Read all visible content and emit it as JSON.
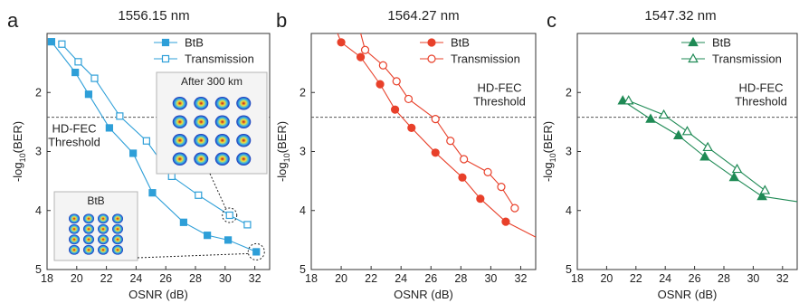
{
  "chart_data": [
    {
      "type": "line",
      "panel_letter": "a",
      "title": "1556.15 nm",
      "xlabel": "OSNR (dB)",
      "ylabel_main": "-log",
      "ylabel_sub": "10",
      "ylabel_tail": "(BER)",
      "xlim": [
        18,
        33
      ],
      "ylim": [
        5,
        1
      ],
      "y_inverted": true,
      "xticks": [
        18,
        20,
        22,
        24,
        26,
        28,
        30,
        32
      ],
      "yticks": [
        2,
        3,
        4,
        5
      ],
      "color": "#2e9fd8",
      "fec_threshold": 2.42,
      "fec_label_lines": [
        "HD-FEC",
        "Threshold"
      ],
      "legend_position": "top-right",
      "series": [
        {
          "name": "BtB",
          "marker": "square-filled",
          "x": [
            18.3,
            19.9,
            20.8,
            22.2,
            23.8,
            25.1,
            27.2,
            28.8,
            30.2,
            32.1
          ],
          "y": [
            1.14,
            1.66,
            2.03,
            2.6,
            3.03,
            3.7,
            4.2,
            4.42,
            4.5,
            4.7
          ]
        },
        {
          "name": "Transmission",
          "marker": "square-open",
          "x": [
            19.0,
            20.1,
            21.2,
            22.9,
            24.7,
            26.4,
            28.2,
            30.3,
            31.5
          ],
          "y": [
            1.18,
            1.48,
            1.76,
            2.4,
            2.82,
            3.42,
            3.74,
            4.08,
            4.24
          ]
        }
      ],
      "insets": [
        {
          "title": "After 300 km",
          "grid": "4x4",
          "x_pointer": 30.3,
          "y_pointer": 4.08
        },
        {
          "title": "BtB",
          "grid": "4x4",
          "x_pointer": 32.1,
          "y_pointer": 4.7
        }
      ]
    },
    {
      "type": "line",
      "panel_letter": "b",
      "title": "1564.27 nm",
      "xlabel": "OSNR (dB)",
      "ylabel_main": "-log",
      "ylabel_sub": "10",
      "ylabel_tail": "(BER)",
      "xlim": [
        18,
        33
      ],
      "ylim": [
        5,
        1
      ],
      "y_inverted": true,
      "xticks": [
        18,
        20,
        22,
        24,
        26,
        28,
        30,
        32
      ],
      "yticks": [
        2,
        3,
        4,
        5
      ],
      "color": "#e8402a",
      "fec_threshold": 2.42,
      "fec_label_lines": [
        "HD-FEC",
        "Threshold"
      ],
      "legend_position": "top-right",
      "series": [
        {
          "name": "BtB",
          "marker": "circle-filled",
          "x": [
            20.0,
            21.3,
            22.6,
            23.6,
            24.7,
            26.3,
            28.1,
            29.3,
            31.0
          ],
          "y": [
            1.15,
            1.4,
            1.86,
            2.29,
            2.6,
            3.02,
            3.44,
            3.8,
            4.19
          ]
        },
        {
          "name": "Transmission",
          "marker": "circle-open",
          "x": [
            21.6,
            22.8,
            23.7,
            24.5,
            26.3,
            27.3,
            28.2,
            29.8,
            30.7,
            31.6
          ],
          "y": [
            1.28,
            1.54,
            1.81,
            2.11,
            2.45,
            2.82,
            3.13,
            3.35,
            3.6,
            3.96
          ]
        }
      ]
    },
    {
      "type": "line",
      "panel_letter": "c",
      "title": "1547.32 nm",
      "xlabel": "OSNR (dB)",
      "ylabel_main": "-log",
      "ylabel_sub": "10",
      "ylabel_tail": "(BER)",
      "xlim": [
        18,
        33
      ],
      "ylim": [
        5,
        1
      ],
      "y_inverted": true,
      "xticks": [
        18,
        20,
        22,
        24,
        26,
        28,
        30,
        32
      ],
      "yticks": [
        2,
        3,
        4,
        5
      ],
      "color": "#1f8a55",
      "fec_threshold": 2.42,
      "fec_label_lines": [
        "HD-FEC",
        "Threshold"
      ],
      "legend_position": "top-right",
      "series": [
        {
          "name": "BtB",
          "marker": "triangle-filled",
          "x": [
            21.1,
            23.0,
            24.9,
            26.7,
            28.7,
            30.6
          ],
          "y": [
            2.14,
            2.45,
            2.73,
            3.09,
            3.44,
            3.76
          ]
        },
        {
          "name": "Transmission",
          "marker": "triangle-open",
          "x": [
            21.5,
            23.9,
            25.5,
            26.9,
            28.9,
            30.8
          ],
          "y": [
            2.14,
            2.38,
            2.66,
            2.93,
            3.3,
            3.66
          ]
        }
      ]
    }
  ]
}
